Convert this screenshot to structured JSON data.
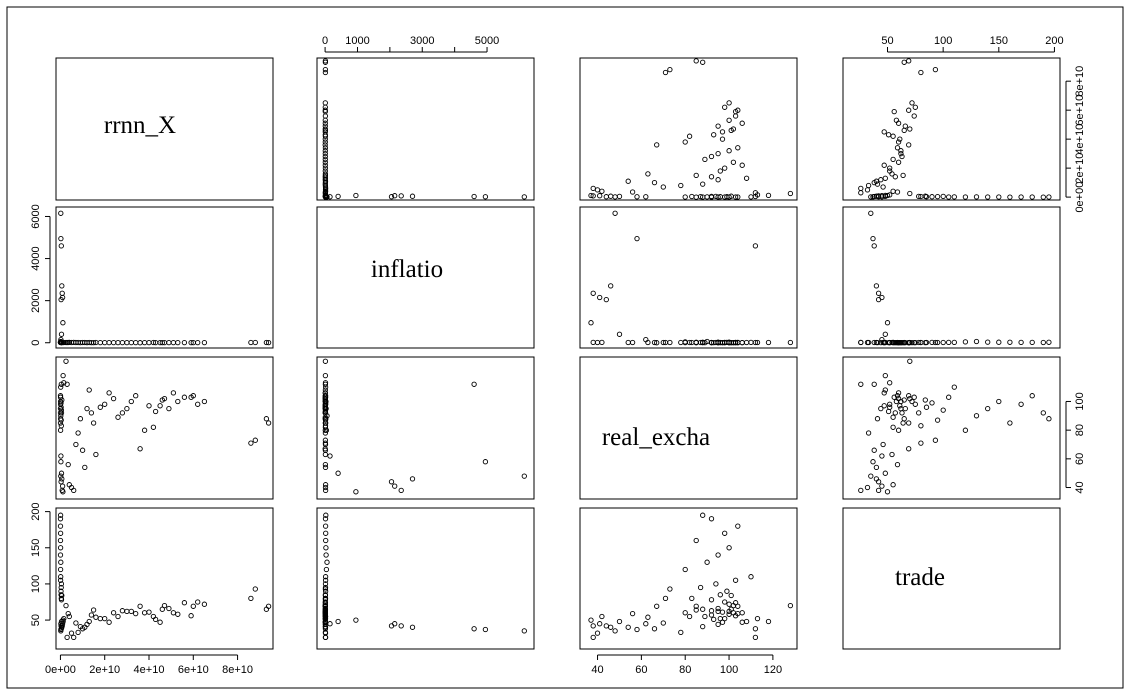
{
  "chart_data": {
    "type": "scatter",
    "variables": [
      "rrnn_X",
      "inflatio",
      "real_excha",
      "trade"
    ],
    "axes": {
      "rrnn_X": {
        "range": [
          -2000000000.0,
          96000000000.0
        ],
        "ticks": [
          0,
          20000000000.0,
          40000000000.0,
          60000000000.0,
          80000000000.0
        ],
        "tick_labels": [
          "0e+00",
          "2e+10",
          "4e+10",
          "6e+10",
          "8e+10"
        ]
      },
      "inflatio": {
        "range": [
          -250,
          6450
        ],
        "ticks": [
          0,
          2000,
          4000,
          6000
        ],
        "tick_labels": [
          "0",
          "2000",
          "4000",
          "6000"
        ],
        "top_ticks": [
          0,
          1000,
          3000,
          5000
        ],
        "top_tick_labels": [
          "0",
          "1000",
          "3000",
          "5000"
        ],
        "top_minor_ticks": [
          2000,
          4000
        ]
      },
      "real_excha": {
        "range": [
          32,
          131
        ],
        "ticks": [
          40,
          60,
          80,
          100,
          120
        ],
        "tick_labels": [
          "40",
          "60",
          "80",
          "100",
          "120"
        ]
      },
      "trade": {
        "range": [
          10,
          205
        ],
        "ticks": [
          50,
          100,
          150,
          200
        ],
        "tick_labels": [
          "50",
          "100",
          "150",
          "200"
        ]
      }
    },
    "axis_labels": {
      "bottom": {
        "rrnn_X": "left",
        "real_excha": "left"
      },
      "top": {
        "inflatio": "top",
        "trade": "top"
      },
      "left": {
        "inflatio": "left",
        "trade": "left"
      },
      "right": {
        "rrnn_X": "right",
        "real_excha": "right"
      }
    },
    "observations": [
      [
        1500000000.0,
        12,
        113,
        52
      ],
      [
        94000000000.0,
        8,
        85,
        69
      ],
      [
        93000000000.0,
        10,
        88,
        65
      ],
      [
        88000000000.0,
        10,
        73,
        93
      ],
      [
        86000000000.0,
        10,
        71,
        80
      ],
      [
        65000000000.0,
        6,
        100,
        72
      ],
      [
        62000000000.0,
        6,
        98,
        75
      ],
      [
        60000000000.0,
        7,
        104,
        69
      ],
      [
        59000000000.0,
        5,
        103,
        56
      ],
      [
        56000000000.0,
        8,
        103,
        74
      ],
      [
        53000000000.0,
        6,
        100,
        58
      ],
      [
        51000000000.0,
        5,
        106,
        60
      ],
      [
        49000000000.0,
        6,
        95,
        66
      ],
      [
        47000000000.0,
        6,
        102,
        70
      ],
      [
        46000000000.0,
        8,
        101,
        65
      ],
      [
        45000000000.0,
        6,
        97,
        47
      ],
      [
        43000000000.0,
        7,
        93,
        51
      ],
      [
        42000000000.0,
        9,
        82,
        55
      ],
      [
        40000000000.0,
        6,
        97,
        61
      ],
      [
        38000000000.0,
        5,
        80,
        60
      ],
      [
        36000000000.0,
        4,
        67,
        69
      ],
      [
        34000000000.0,
        8,
        104,
        59
      ],
      [
        32000000000.0,
        7,
        100,
        62
      ],
      [
        30000000000.0,
        6,
        95,
        62
      ],
      [
        28000000000.0,
        5,
        92,
        63
      ],
      [
        26000000000.0,
        5,
        89,
        55
      ],
      [
        24000000000.0,
        7,
        102,
        60
      ],
      [
        22000000000.0,
        5,
        106,
        47
      ],
      [
        20000000000.0,
        8,
        98,
        52
      ],
      [
        18000000000.0,
        6,
        96,
        52
      ],
      [
        16000000000.0,
        10,
        63,
        54
      ],
      [
        15000000000.0,
        8,
        85,
        64
      ],
      [
        14000000000.0,
        7,
        92,
        57
      ],
      [
        13000000000.0,
        9,
        108,
        48
      ],
      [
        12000000000.0,
        6,
        95,
        44
      ],
      [
        11000000000.0,
        12,
        54,
        40
      ],
      [
        10000000000.0,
        10,
        66,
        38
      ],
      [
        9000000000.0,
        7,
        88,
        41
      ],
      [
        8000000000.0,
        9,
        78,
        33
      ],
      [
        7000000000.0,
        11,
        70,
        46
      ],
      [
        6000000000.0,
        14,
        38,
        26
      ],
      [
        5000000000.0,
        12,
        40,
        32
      ],
      [
        4000000000.0,
        15,
        42,
        55
      ],
      [
        3500000000.0,
        9,
        56,
        59
      ],
      [
        3000000000.0,
        10,
        112,
        26
      ],
      [
        2500000000.0,
        10,
        128,
        70
      ],
      [
        1200000000.0,
        10,
        118,
        48
      ],
      [
        150000000.0,
        6150,
        48,
        35
      ],
      [
        200000000.0,
        4950,
        58,
        37
      ],
      [
        400000000.0,
        4600,
        112,
        38
      ],
      [
        600000000.0,
        2700,
        46,
        40
      ],
      [
        800000000.0,
        2350,
        38,
        42
      ],
      [
        1000000000.0,
        2150,
        41,
        45
      ],
      [
        300000000.0,
        2050,
        44,
        42
      ],
      [
        1100000000.0,
        950,
        37,
        50
      ],
      [
        500000000.0,
        400,
        50,
        48
      ],
      [
        200000000.0,
        150,
        62,
        45
      ],
      [
        80000000.0,
        40,
        80,
        120
      ],
      [
        150000000.0,
        60,
        90,
        130
      ],
      [
        50000000.0,
        30,
        95,
        140
      ],
      [
        100000000.0,
        25,
        100,
        150
      ],
      [
        30000000.0,
        20,
        85,
        160
      ],
      [
        60000000.0,
        18,
        98,
        170
      ],
      [
        40000000.0,
        15,
        104,
        180
      ],
      [
        20000000.0,
        12,
        92,
        190
      ],
      [
        90000000.0,
        22,
        88,
        195
      ],
      [
        120000000.0,
        16,
        110,
        110
      ],
      [
        70000000.0,
        14,
        103,
        105
      ],
      [
        300000000.0,
        10,
        96,
        85
      ],
      [
        400000000.0,
        12,
        83,
        80
      ],
      [
        500000000.0,
        9,
        92,
        78
      ],
      [
        250000000.0,
        14,
        99,
        90
      ],
      [
        600000000.0,
        8,
        101,
        84
      ],
      [
        350000000.0,
        11,
        87,
        95
      ],
      [
        450000000.0,
        13,
        94,
        100
      ]
    ]
  }
}
